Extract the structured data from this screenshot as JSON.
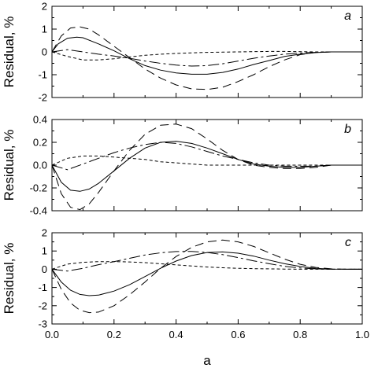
{
  "chart_data": [
    {
      "type": "line",
      "panel_label": "a",
      "xlabel": "",
      "ylabel": "Residual, %",
      "xlim": [
        0,
        1
      ],
      "ylim": [
        -2,
        2
      ],
      "xticks": [
        0,
        0.2,
        0.4,
        0.6,
        0.8,
        1.0
      ],
      "yticks": [
        -2,
        -1,
        0,
        1,
        2
      ],
      "ytick_labels": [
        "-2",
        "-1",
        "0",
        "1",
        "2"
      ],
      "series": [
        {
          "style": "solid",
          "x": [
            0,
            0.02,
            0.05,
            0.08,
            0.1,
            0.15,
            0.2,
            0.25,
            0.3,
            0.35,
            0.4,
            0.45,
            0.5,
            0.55,
            0.6,
            0.65,
            0.7,
            0.75,
            0.8,
            0.85,
            0.9,
            0.95,
            1.0
          ],
          "y": [
            0,
            0.35,
            0.6,
            0.65,
            0.62,
            0.35,
            0.05,
            -0.3,
            -0.6,
            -0.8,
            -0.92,
            -0.98,
            -0.98,
            -0.9,
            -0.75,
            -0.55,
            -0.38,
            -0.2,
            -0.1,
            -0.03,
            0,
            0,
            0
          ]
        },
        {
          "style": "long-dash",
          "x": [
            0,
            0.03,
            0.06,
            0.09,
            0.12,
            0.15,
            0.2,
            0.25,
            0.3,
            0.35,
            0.4,
            0.45,
            0.5,
            0.55,
            0.6,
            0.65,
            0.7,
            0.75,
            0.8,
            0.85,
            0.9,
            0.95,
            1.0
          ],
          "y": [
            0,
            0.7,
            1.05,
            1.1,
            1.0,
            0.75,
            0.25,
            -0.25,
            -0.75,
            -1.15,
            -1.45,
            -1.62,
            -1.65,
            -1.55,
            -1.3,
            -1.0,
            -0.65,
            -0.35,
            -0.12,
            -0.02,
            0,
            0,
            0
          ]
        },
        {
          "style": "dash-dot",
          "x": [
            0,
            0.05,
            0.1,
            0.15,
            0.2,
            0.25,
            0.3,
            0.35,
            0.4,
            0.45,
            0.5,
            0.55,
            0.6,
            0.65,
            0.7,
            0.75,
            0.8,
            0.85,
            0.9,
            0.95,
            1.0
          ],
          "y": [
            0,
            0.1,
            0.0,
            -0.1,
            -0.18,
            -0.28,
            -0.4,
            -0.5,
            -0.58,
            -0.62,
            -0.6,
            -0.52,
            -0.4,
            -0.28,
            -0.18,
            -0.1,
            -0.05,
            -0.02,
            0,
            0,
            0
          ]
        },
        {
          "style": "short-dash",
          "x": [
            0,
            0.05,
            0.1,
            0.15,
            0.2,
            0.25,
            0.3,
            0.35,
            0.4,
            0.45,
            0.5,
            0.55,
            0.6,
            0.65,
            0.7,
            0.75,
            0.8,
            0.85,
            0.9,
            0.95,
            1.0
          ],
          "y": [
            0,
            -0.2,
            -0.35,
            -0.35,
            -0.3,
            -0.22,
            -0.15,
            -0.1,
            -0.07,
            -0.04,
            -0.02,
            -0.01,
            0,
            0.01,
            0.02,
            0.02,
            0.01,
            0,
            0,
            0,
            0
          ]
        }
      ]
    },
    {
      "type": "line",
      "panel_label": "b",
      "xlabel": "",
      "ylabel": "Residual, %",
      "xlim": [
        0,
        1
      ],
      "ylim": [
        -0.4,
        0.4
      ],
      "xticks": [
        0,
        0.2,
        0.4,
        0.6,
        0.8,
        1.0
      ],
      "yticks": [
        -0.4,
        -0.2,
        0.0,
        0.2,
        0.4
      ],
      "ytick_labels": [
        "-0.4",
        "-0.2",
        "0.0",
        "0.2",
        "0.4"
      ],
      "series": [
        {
          "style": "solid",
          "x": [
            0,
            0.03,
            0.06,
            0.09,
            0.12,
            0.15,
            0.2,
            0.25,
            0.3,
            0.35,
            0.4,
            0.45,
            0.5,
            0.55,
            0.6,
            0.65,
            0.7,
            0.75,
            0.8,
            0.85,
            0.9,
            0.95,
            1.0
          ],
          "y": [
            0,
            -0.15,
            -0.22,
            -0.23,
            -0.21,
            -0.16,
            -0.05,
            0.06,
            0.15,
            0.2,
            0.21,
            0.19,
            0.15,
            0.1,
            0.05,
            0.01,
            -0.01,
            -0.02,
            -0.02,
            -0.01,
            0,
            0,
            0
          ]
        },
        {
          "style": "long-dash",
          "x": [
            0,
            0.03,
            0.06,
            0.09,
            0.12,
            0.15,
            0.2,
            0.25,
            0.3,
            0.35,
            0.4,
            0.45,
            0.5,
            0.55,
            0.6,
            0.65,
            0.7,
            0.75,
            0.8,
            0.85,
            0.9,
            0.95,
            1.0
          ],
          "y": [
            0,
            -0.25,
            -0.37,
            -0.39,
            -0.34,
            -0.24,
            -0.05,
            0.13,
            0.27,
            0.35,
            0.36,
            0.32,
            0.23,
            0.13,
            0.05,
            0.0,
            -0.02,
            -0.03,
            -0.03,
            -0.02,
            0,
            0,
            0
          ]
        },
        {
          "style": "dash-dot",
          "x": [
            0,
            0.05,
            0.1,
            0.15,
            0.2,
            0.25,
            0.3,
            0.35,
            0.4,
            0.45,
            0.5,
            0.55,
            0.6,
            0.65,
            0.7,
            0.75,
            0.8,
            0.85,
            0.9,
            0.95,
            1.0
          ],
          "y": [
            0,
            -0.04,
            0.01,
            0.06,
            0.11,
            0.15,
            0.18,
            0.2,
            0.19,
            0.16,
            0.12,
            0.08,
            0.05,
            0.02,
            0,
            -0.01,
            -0.01,
            -0.01,
            0,
            0,
            0
          ]
        },
        {
          "style": "short-dash",
          "x": [
            0,
            0.05,
            0.1,
            0.15,
            0.2,
            0.25,
            0.3,
            0.35,
            0.4,
            0.45,
            0.5,
            0.55,
            0.6,
            0.65,
            0.7,
            0.75,
            0.8,
            0.85,
            0.9,
            0.95,
            1.0
          ],
          "y": [
            0,
            0.06,
            0.08,
            0.08,
            0.07,
            0.06,
            0.05,
            0.03,
            0.02,
            0.01,
            0,
            0,
            0,
            0,
            0,
            0,
            0,
            0,
            0,
            0,
            0
          ]
        }
      ]
    },
    {
      "type": "line",
      "panel_label": "c",
      "xlabel": "a",
      "ylabel": "Residual, %",
      "xlim": [
        0,
        1
      ],
      "ylim": [
        -3,
        2
      ],
      "xticks": [
        0,
        0.2,
        0.4,
        0.6,
        0.8,
        1.0
      ],
      "xtick_labels": [
        "0.0",
        "0.2",
        "0.4",
        "0.6",
        "0.8",
        "1.0"
      ],
      "yticks": [
        -3,
        -2,
        -1,
        0,
        1,
        2
      ],
      "ytick_labels": [
        "-3",
        "-2",
        "-1",
        "0",
        "1",
        "2"
      ],
      "series": [
        {
          "style": "solid",
          "x": [
            0,
            0.03,
            0.06,
            0.09,
            0.12,
            0.15,
            0.2,
            0.25,
            0.3,
            0.35,
            0.4,
            0.45,
            0.5,
            0.55,
            0.6,
            0.65,
            0.7,
            0.75,
            0.8,
            0.85,
            0.9,
            0.95,
            1.0
          ],
          "y": [
            0,
            -0.7,
            -1.15,
            -1.38,
            -1.45,
            -1.42,
            -1.2,
            -0.85,
            -0.4,
            0.05,
            0.45,
            0.75,
            0.92,
            0.95,
            0.88,
            0.72,
            0.5,
            0.3,
            0.15,
            0.05,
            0.01,
            0,
            0
          ]
        },
        {
          "style": "long-dash",
          "x": [
            0,
            0.03,
            0.06,
            0.09,
            0.12,
            0.15,
            0.2,
            0.25,
            0.3,
            0.35,
            0.4,
            0.45,
            0.5,
            0.55,
            0.6,
            0.65,
            0.7,
            0.75,
            0.8,
            0.85,
            0.9,
            0.95,
            1.0
          ],
          "y": [
            0,
            -1.1,
            -1.85,
            -2.25,
            -2.38,
            -2.35,
            -2.0,
            -1.4,
            -0.7,
            0.05,
            0.7,
            1.2,
            1.5,
            1.6,
            1.5,
            1.25,
            0.9,
            0.55,
            0.27,
            0.1,
            0.02,
            0,
            0
          ]
        },
        {
          "style": "dash-dot",
          "x": [
            0,
            0.05,
            0.1,
            0.15,
            0.2,
            0.25,
            0.3,
            0.35,
            0.4,
            0.45,
            0.5,
            0.55,
            0.6,
            0.65,
            0.7,
            0.75,
            0.8,
            0.85,
            0.9,
            0.95,
            1.0
          ],
          "y": [
            0,
            -0.1,
            0.05,
            0.25,
            0.42,
            0.6,
            0.78,
            0.9,
            0.97,
            0.98,
            0.92,
            0.8,
            0.64,
            0.46,
            0.3,
            0.16,
            0.07,
            0.02,
            0,
            0,
            0
          ]
        },
        {
          "style": "short-dash",
          "x": [
            0,
            0.05,
            0.1,
            0.15,
            0.2,
            0.25,
            0.3,
            0.35,
            0.4,
            0.45,
            0.5,
            0.55,
            0.6,
            0.65,
            0.7,
            0.75,
            0.8,
            0.85,
            0.9,
            0.95,
            1.0
          ],
          "y": [
            0,
            0.28,
            0.38,
            0.42,
            0.42,
            0.4,
            0.36,
            0.3,
            0.24,
            0.18,
            0.12,
            0.08,
            0.05,
            0.03,
            0.02,
            0.01,
            0,
            0,
            0,
            0,
            0
          ]
        }
      ]
    }
  ]
}
